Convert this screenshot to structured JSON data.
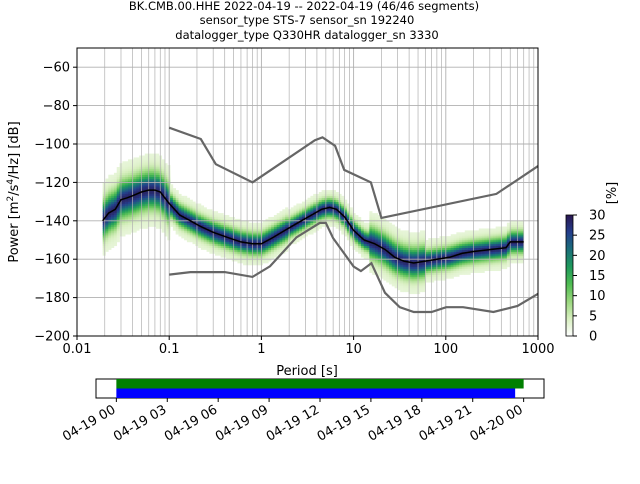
{
  "title_lines": [
    "BK.CMB.00.HHE   2022-04-19 -- 2022-04-19  (46/46 segments)",
    "sensor_type STS-7 sensor_sn 192240",
    "datalogger_type Q330HR datalogger_sn 3330"
  ],
  "chart_data": [
    {
      "type": "heatmap",
      "xscale": "log",
      "xlim": [
        0.01,
        1000
      ],
      "ylim": [
        -200,
        -50
      ],
      "grid": true,
      "xlabel": "Period [s]",
      "ylabel": "Power [m²/s⁴/Hz] [dB]",
      "ylabel_parts": {
        "base": "Power [m",
        "sup1": "2",
        "mid": "/s",
        "sup2": "4",
        "end": "/Hz] [dB]"
      },
      "x_ticks": [
        {
          "value": 0.01,
          "label": "0.01"
        },
        {
          "value": 0.1,
          "label": "0.1"
        },
        {
          "value": 1,
          "label": "1"
        },
        {
          "value": 10,
          "label": "10"
        },
        {
          "value": 100,
          "label": "100"
        },
        {
          "value": 1000,
          "label": "1000"
        }
      ],
      "y_ticks": [
        {
          "value": -60,
          "label": "−60"
        },
        {
          "value": -80,
          "label": "−80"
        },
        {
          "value": -100,
          "label": "−100"
        },
        {
          "value": -120,
          "label": "−120"
        },
        {
          "value": -140,
          "label": "−140"
        },
        {
          "value": -160,
          "label": "−160"
        },
        {
          "value": -180,
          "label": "−180"
        },
        {
          "value": -200,
          "label": "−200"
        }
      ],
      "colorbar": {
        "label": "[%]",
        "range": [
          0,
          30
        ],
        "ticks": [
          {
            "value": 0,
            "label": "0"
          },
          {
            "value": 5,
            "label": "5"
          },
          {
            "value": 10,
            "label": "10"
          },
          {
            "value": 15,
            "label": "15"
          },
          {
            "value": 20,
            "label": "20"
          },
          {
            "value": 25,
            "label": "25"
          },
          {
            "value": 30,
            "label": "30"
          }
        ],
        "colors": [
          "#ffffff",
          "#d8efc0",
          "#9ad77e",
          "#4fbc52",
          "#1f9a5c",
          "#1b6f7a",
          "#243e8c",
          "#2a1650"
        ]
      },
      "mode_curve": [
        [
          0.019,
          -140
        ],
        [
          0.022,
          -136
        ],
        [
          0.026,
          -134
        ],
        [
          0.03,
          -129
        ],
        [
          0.035,
          -128
        ],
        [
          0.04,
          -127
        ],
        [
          0.05,
          -125
        ],
        [
          0.06,
          -124
        ],
        [
          0.07,
          -124
        ],
        [
          0.08,
          -125
        ],
        [
          0.1,
          -131
        ],
        [
          0.13,
          -137
        ],
        [
          0.17,
          -140
        ],
        [
          0.22,
          -143
        ],
        [
          0.3,
          -146
        ],
        [
          0.45,
          -149
        ],
        [
          0.6,
          -151
        ],
        [
          0.8,
          -152
        ],
        [
          1.0,
          -152
        ],
        [
          1.3,
          -149
        ],
        [
          1.8,
          -145
        ],
        [
          2.5,
          -141
        ],
        [
          3.5,
          -137
        ],
        [
          4.5,
          -134
        ],
        [
          5.5,
          -133
        ],
        [
          6.5,
          -134
        ],
        [
          8,
          -138
        ],
        [
          10,
          -145
        ],
        [
          13,
          -150
        ],
        [
          17,
          -152
        ],
        [
          22,
          -155
        ],
        [
          28,
          -159
        ],
        [
          35,
          -161
        ],
        [
          45,
          -162
        ],
        [
          60,
          -161
        ],
        [
          80,
          -160
        ],
        [
          110,
          -159
        ],
        [
          150,
          -157
        ],
        [
          200,
          -156
        ],
        [
          300,
          -155
        ],
        [
          450,
          -154
        ],
        [
          500,
          -151
        ],
        [
          700,
          -151
        ]
      ],
      "noise_models": [
        {
          "name": "high",
          "points": [
            [
              0.1,
              -91.5
            ],
            [
              0.22,
              -97.4
            ],
            [
              0.32,
              -110.5
            ],
            [
              0.8,
              -120
            ],
            [
              3.8,
              -98
            ],
            [
              4.6,
              -96.5
            ],
            [
              6.3,
              -101
            ],
            [
              7.9,
              -113.5
            ],
            [
              15.4,
              -120
            ],
            [
              20,
              -138.5
            ],
            [
              354,
              -126
            ],
            [
              1000,
              -111.5
            ]
          ]
        },
        {
          "name": "low",
          "points": [
            [
              0.1,
              -168
            ],
            [
              0.17,
              -166.7
            ],
            [
              0.4,
              -166.7
            ],
            [
              0.8,
              -169.2
            ],
            [
              1.24,
              -163.7
            ],
            [
              2.4,
              -148.6
            ],
            [
              4.3,
              -141.1
            ],
            [
              5,
              -141.1
            ],
            [
              6,
              -149
            ],
            [
              10,
              -163.8
            ],
            [
              12,
              -166.2
            ],
            [
              15.6,
              -162.1
            ],
            [
              21.9,
              -177.5
            ],
            [
              31.6,
              -185
            ],
            [
              45,
              -187.5
            ],
            [
              70,
              -187.5
            ],
            [
              101,
              -185
            ],
            [
              154,
              -185
            ],
            [
              328,
              -187.5
            ],
            [
              600,
              -184.4
            ],
            [
              1000,
              -178
            ]
          ]
        }
      ]
    },
    {
      "type": "timeline",
      "x_ticks": [
        "04-19 00",
        "04-19 03",
        "04-19 06",
        "04-19 09",
        "04-19 12",
        "04-19 15",
        "04-19 18",
        "04-19 21",
        "04-20 00"
      ],
      "bars": [
        {
          "color": "#008000",
          "start_hour": 0,
          "end_hour": 24
        },
        {
          "color": "#0000ff",
          "start_hour": 0,
          "end_hour": 23.5
        }
      ],
      "xlim_hours": [
        -1.2,
        25.2
      ]
    }
  ]
}
